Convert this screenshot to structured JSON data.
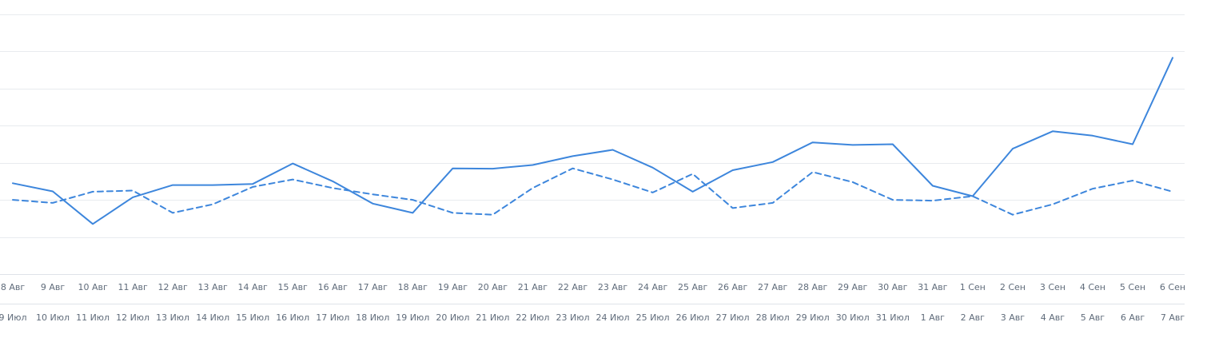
{
  "chart_data": {
    "type": "line",
    "x_primary": [
      "8 Авг",
      "9 Авг",
      "10 Авг",
      "11 Авг",
      "12 Авг",
      "13 Авг",
      "14 Авг",
      "15 Авг",
      "16 Авг",
      "17 Авг",
      "18 Авг",
      "19 Авг",
      "20 Авг",
      "21 Авг",
      "22 Авг",
      "23 Авг",
      "24 Авг",
      "25 Авг",
      "26 Авг",
      "27 Авг",
      "28 Авг",
      "29 Авг",
      "30 Авг",
      "31 Авг",
      "1 Сен",
      "2 Сен",
      "3 Сен",
      "4 Сен",
      "5 Сен",
      "6 Сен"
    ],
    "x_secondary": [
      "9 Июл",
      "10 Июл",
      "11 Июл",
      "12 Июл",
      "13 Июл",
      "14 Июл",
      "15 Июл",
      "16 Июл",
      "17 Июл",
      "18 Июл",
      "19 Июл",
      "20 Июл",
      "21 Июл",
      "22 Июл",
      "23 Июл",
      "24 Июл",
      "25 Июл",
      "26 Июл",
      "27 Июл",
      "28 Июл",
      "29 Июл",
      "30 Июл",
      "31 Июл",
      "1 Авг",
      "2 Авг",
      "3 Авг",
      "4 Авг",
      "5 Авг",
      "6 Авг",
      "7 Авг"
    ],
    "series": [
      {
        "style": "solid",
        "color": "#3d86dc",
        "values": [
          2.45,
          2.23,
          1.35,
          2.07,
          2.4,
          2.4,
          2.43,
          2.98,
          2.5,
          1.9,
          1.65,
          2.85,
          2.84,
          2.94,
          3.18,
          3.35,
          2.87,
          2.22,
          2.8,
          3.02,
          3.55,
          3.48,
          3.5,
          2.38,
          2.1,
          3.38,
          3.85,
          3.73,
          3.5,
          5.83
        ]
      },
      {
        "style": "dashed",
        "color": "#3d86dc",
        "values": [
          2.0,
          1.92,
          2.22,
          2.25,
          1.65,
          1.88,
          2.35,
          2.55,
          2.32,
          2.15,
          2.0,
          1.65,
          1.6,
          2.32,
          2.85,
          2.55,
          2.2,
          2.7,
          1.78,
          1.92,
          2.75,
          2.48,
          2.0,
          1.98,
          2.1,
          1.6,
          1.88,
          2.3,
          2.52,
          2.22
        ]
      }
    ],
    "ylim": [
      0,
      7
    ],
    "grid": true,
    "legend": "none"
  }
}
